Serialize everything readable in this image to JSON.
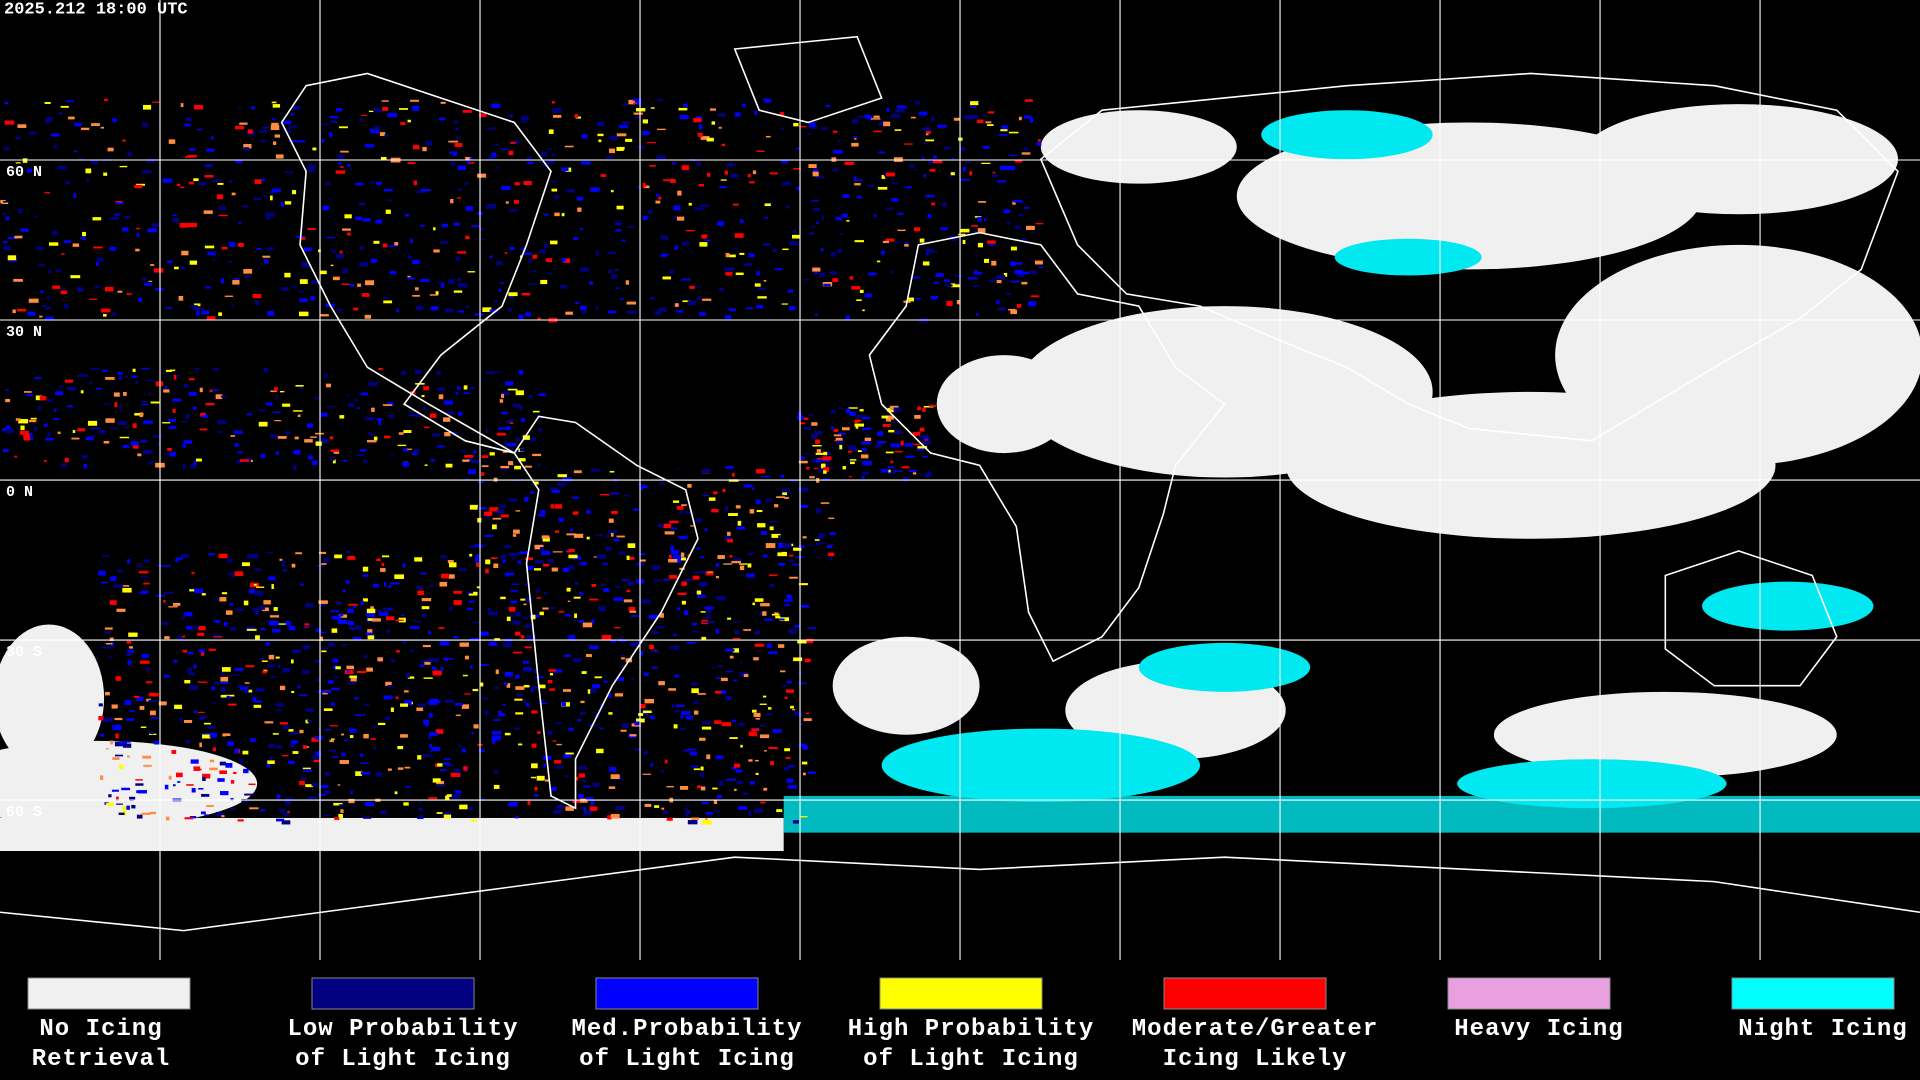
{
  "header": {
    "timestamp": "2025.212 18:00 UTC"
  },
  "map": {
    "latitude_labels": [
      "60 N",
      "30 N",
      "0 N",
      "30 S",
      "60 S"
    ]
  },
  "legend": [
    {
      "label_lines": [
        "No Icing",
        "Retrieval"
      ],
      "color": "#f0f0f0"
    },
    {
      "label_lines": [
        "Low Probability",
        "of Light Icing"
      ],
      "color": "#000080"
    },
    {
      "label_lines": [
        "Med.Probability",
        "of Light Icing"
      ],
      "color": "#0000ff"
    },
    {
      "label_lines": [
        "High Probability",
        "of Light Icing"
      ],
      "color": "#ffff00"
    },
    {
      "label_lines": [
        "Moderate/Greater",
        "Icing Likely"
      ],
      "color": "#ff0000"
    },
    {
      "label_lines": [
        "Heavy Icing"
      ],
      "color": "#e8a0e0"
    },
    {
      "label_lines": [
        "Night Icing"
      ],
      "color": "#00ffff"
    }
  ]
}
